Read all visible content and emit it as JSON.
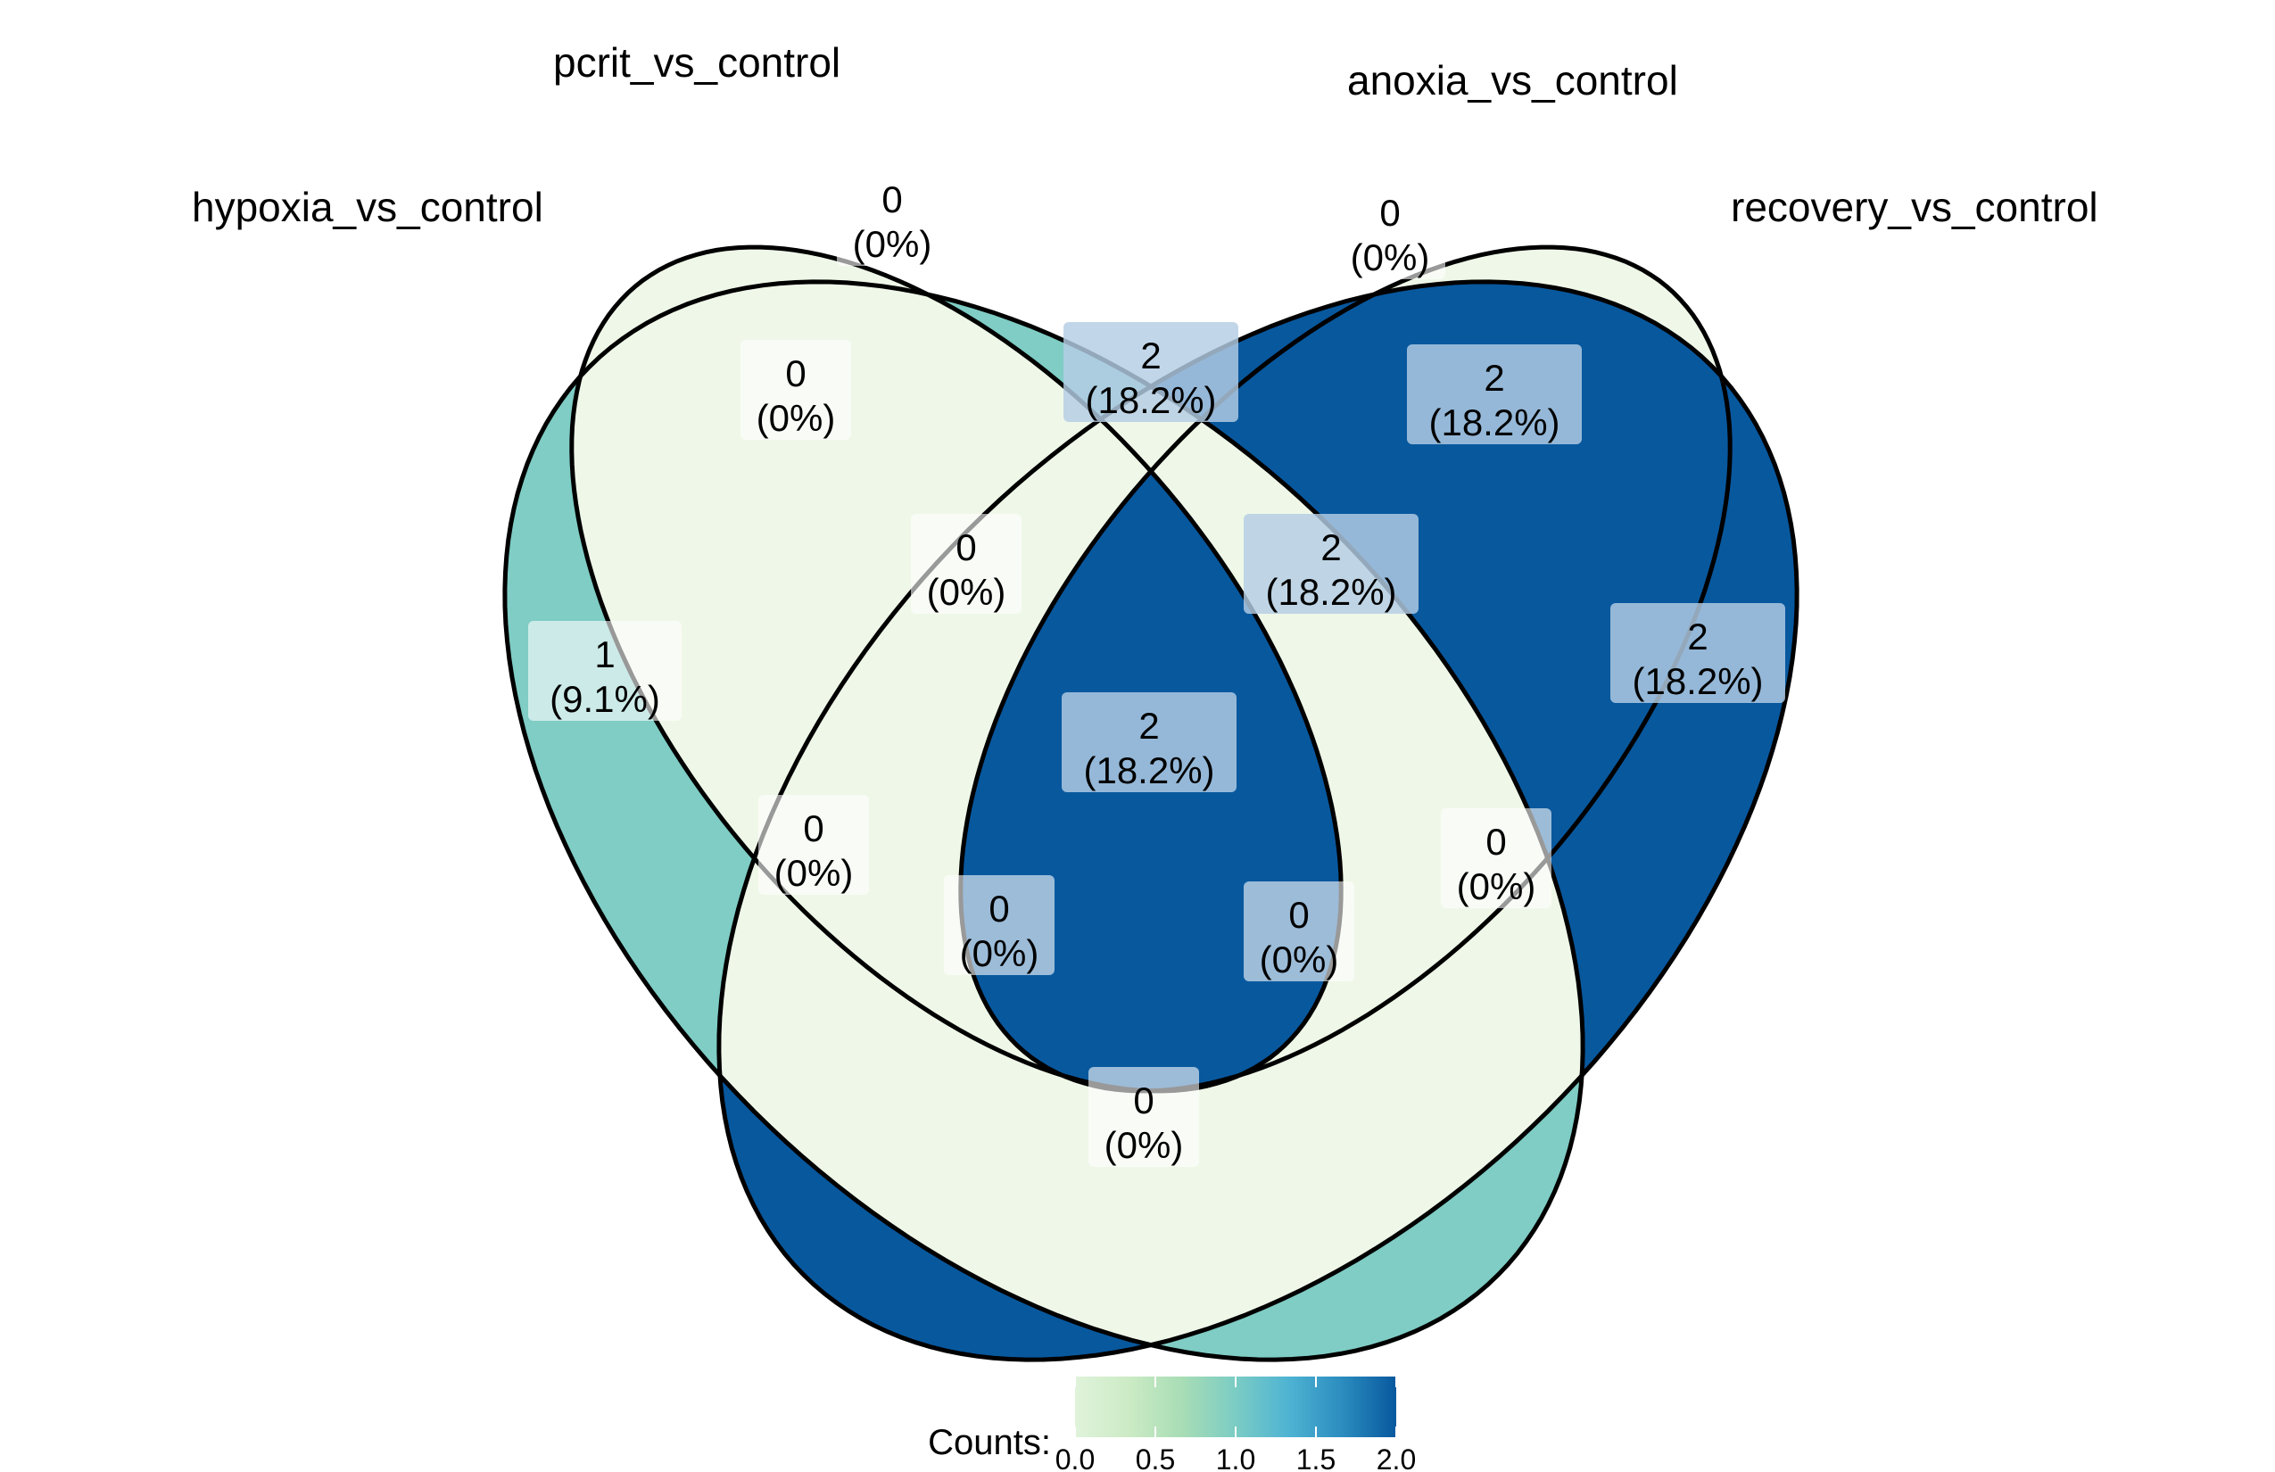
{
  "sets": [
    {
      "id": "hypoxia",
      "label": "hypoxia_vs_control"
    },
    {
      "id": "pcrit",
      "label": "pcrit_vs_control"
    },
    {
      "id": "anoxia",
      "label": "anoxia_vs_control"
    },
    {
      "id": "recovery",
      "label": "recovery_vs_control"
    }
  ],
  "regions": [
    {
      "id": "hypoxia-only",
      "sets": [
        "hypoxia"
      ],
      "count": "1",
      "percent": "(9.1%)"
    },
    {
      "id": "pcrit-only",
      "sets": [
        "pcrit"
      ],
      "count": "0",
      "percent": "(0%)"
    },
    {
      "id": "anoxia-only",
      "sets": [
        "anoxia"
      ],
      "count": "0",
      "percent": "(0%)"
    },
    {
      "id": "recovery-only",
      "sets": [
        "recovery"
      ],
      "count": "2",
      "percent": "(18.2%)"
    },
    {
      "id": "hypoxia-pcrit",
      "sets": [
        "hypoxia",
        "pcrit"
      ],
      "count": "0",
      "percent": "(0%)"
    },
    {
      "id": "pcrit-anoxia",
      "sets": [
        "pcrit",
        "anoxia"
      ],
      "count": "2",
      "percent": "(18.2%)"
    },
    {
      "id": "anoxia-recovery",
      "sets": [
        "anoxia",
        "recovery"
      ],
      "count": "2",
      "percent": "(18.2%)"
    },
    {
      "id": "hypoxia-pcrit-anoxia",
      "sets": [
        "hypoxia",
        "pcrit",
        "anoxia"
      ],
      "count": "0",
      "percent": "(0%)"
    },
    {
      "id": "pcrit-anoxia-recovery",
      "sets": [
        "pcrit",
        "anoxia",
        "recovery"
      ],
      "count": "2",
      "percent": "(18.2%)"
    },
    {
      "id": "all-four",
      "sets": [
        "hypoxia",
        "pcrit",
        "anoxia",
        "recovery"
      ],
      "count": "2",
      "percent": "(18.2%)"
    },
    {
      "id": "hypoxia-anoxia",
      "sets": [
        "hypoxia",
        "anoxia"
      ],
      "count": "0",
      "percent": "(0%)"
    },
    {
      "id": "pcrit-recovery",
      "sets": [
        "pcrit",
        "recovery"
      ],
      "count": "0",
      "percent": "(0%)"
    },
    {
      "id": "hypoxia-pcrit-recovery",
      "sets": [
        "hypoxia",
        "pcrit",
        "recovery"
      ],
      "count": "0",
      "percent": "(0%)"
    },
    {
      "id": "hypoxia-anoxia-recovery",
      "sets": [
        "hypoxia",
        "anoxia",
        "recovery"
      ],
      "count": "0",
      "percent": "(0%)"
    },
    {
      "id": "hypoxia-recovery",
      "sets": [
        "hypoxia",
        "recovery"
      ],
      "count": "0",
      "percent": "(0%)"
    }
  ],
  "legend": {
    "title": "Counts:",
    "ticks": [
      "0.0",
      "0.5",
      "1.0",
      "1.5",
      "2.0"
    ],
    "min": 0,
    "max": 2,
    "gradient": [
      "#e0f3db",
      "#ccebc5",
      "#a8ddb5",
      "#7bccc4",
      "#4eb3d3",
      "#2b8cbe",
      "#08589e"
    ]
  },
  "colors": {
    "fill_zero": "#eff8e8",
    "fill_one": "#7fcdc5",
    "fill_two": "#08589e",
    "label_box_light": "#ffffff",
    "label_box_dark": "#b4cde4",
    "outline": "#000000"
  }
}
